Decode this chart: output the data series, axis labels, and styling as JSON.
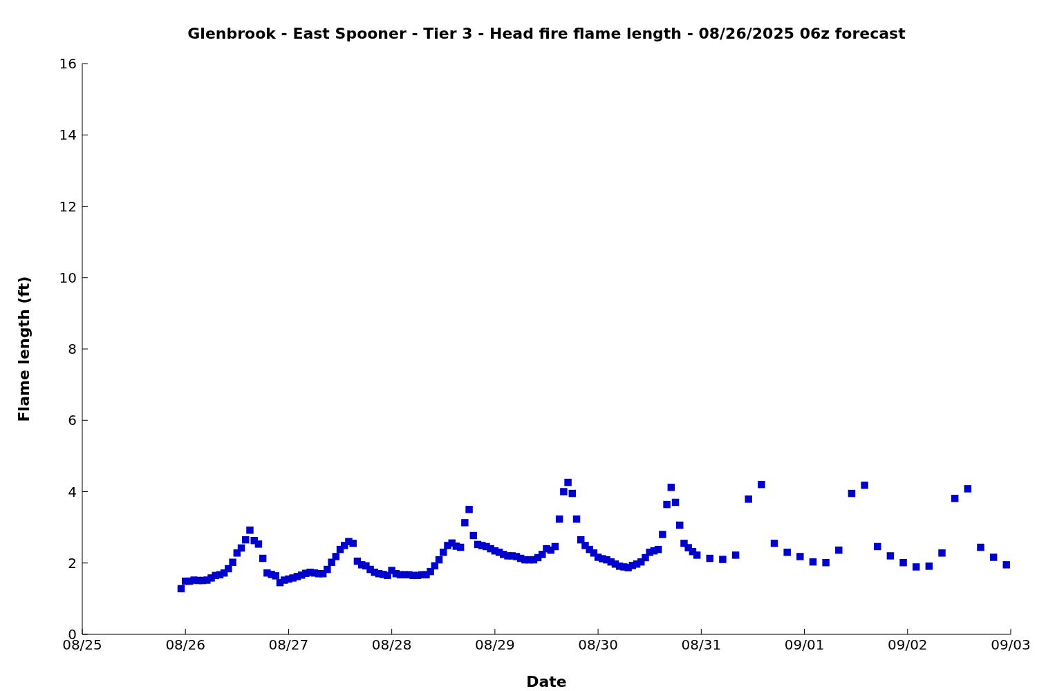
{
  "chart_data": {
    "type": "scatter",
    "title": "Glenbrook - East Spooner - Tier 3 - Head fire flame length - 08/26/2025 06z forecast",
    "xlabel": "Date",
    "ylabel": "Flame length (ft)",
    "marker": "square",
    "grid": false,
    "xlim": [
      "2025-08-25",
      "2025-09-03"
    ],
    "xticks": [
      {
        "value": "2025-08-25",
        "label": "08/25"
      },
      {
        "value": "2025-08-26",
        "label": "08/26"
      },
      {
        "value": "2025-08-27",
        "label": "08/27"
      },
      {
        "value": "2025-08-28",
        "label": "08/28"
      },
      {
        "value": "2025-08-29",
        "label": "08/29"
      },
      {
        "value": "2025-08-30",
        "label": "08/30"
      },
      {
        "value": "2025-08-31",
        "label": "08/31"
      },
      {
        "value": "2025-09-01",
        "label": "09/01"
      },
      {
        "value": "2025-09-02",
        "label": "09/02"
      },
      {
        "value": "2025-09-03",
        "label": "09/03"
      }
    ],
    "ylim": [
      0,
      16
    ],
    "yticks": [
      0,
      2,
      4,
      6,
      8,
      10,
      12,
      14,
      16
    ],
    "series": [
      {
        "color": "#0000cc",
        "x": [
          "2025-08-25T23:00",
          "2025-08-26T00:00",
          "2025-08-26T01:00",
          "2025-08-26T02:00",
          "2025-08-26T03:00",
          "2025-08-26T04:00",
          "2025-08-26T05:00",
          "2025-08-26T06:00",
          "2025-08-26T07:00",
          "2025-08-26T08:00",
          "2025-08-26T09:00",
          "2025-08-26T10:00",
          "2025-08-26T11:00",
          "2025-08-26T12:00",
          "2025-08-26T13:00",
          "2025-08-26T14:00",
          "2025-08-26T15:00",
          "2025-08-26T16:00",
          "2025-08-26T17:00",
          "2025-08-26T18:00",
          "2025-08-26T19:00",
          "2025-08-26T20:00",
          "2025-08-26T21:00",
          "2025-08-26T22:00",
          "2025-08-26T23:00",
          "2025-08-27T00:00",
          "2025-08-27T01:00",
          "2025-08-27T02:00",
          "2025-08-27T03:00",
          "2025-08-27T04:00",
          "2025-08-27T05:00",
          "2025-08-27T06:00",
          "2025-08-27T07:00",
          "2025-08-27T08:00",
          "2025-08-27T09:00",
          "2025-08-27T10:00",
          "2025-08-27T11:00",
          "2025-08-27T12:00",
          "2025-08-27T13:00",
          "2025-08-27T14:00",
          "2025-08-27T15:00",
          "2025-08-27T16:00",
          "2025-08-27T17:00",
          "2025-08-27T18:00",
          "2025-08-27T19:00",
          "2025-08-27T20:00",
          "2025-08-27T21:00",
          "2025-08-27T22:00",
          "2025-08-27T23:00",
          "2025-08-28T00:00",
          "2025-08-28T01:00",
          "2025-08-28T02:00",
          "2025-08-28T03:00",
          "2025-08-28T04:00",
          "2025-08-28T05:00",
          "2025-08-28T06:00",
          "2025-08-28T07:00",
          "2025-08-28T08:00",
          "2025-08-28T09:00",
          "2025-08-28T10:00",
          "2025-08-28T11:00",
          "2025-08-28T12:00",
          "2025-08-28T13:00",
          "2025-08-28T14:00",
          "2025-08-28T15:00",
          "2025-08-28T16:00",
          "2025-08-28T17:00",
          "2025-08-28T18:00",
          "2025-08-28T19:00",
          "2025-08-28T20:00",
          "2025-08-28T21:00",
          "2025-08-28T22:00",
          "2025-08-28T23:00",
          "2025-08-29T00:00",
          "2025-08-29T01:00",
          "2025-08-29T02:00",
          "2025-08-29T03:00",
          "2025-08-29T04:00",
          "2025-08-29T05:00",
          "2025-08-29T06:00",
          "2025-08-29T07:00",
          "2025-08-29T08:00",
          "2025-08-29T09:00",
          "2025-08-29T10:00",
          "2025-08-29T11:00",
          "2025-08-29T12:00",
          "2025-08-29T13:00",
          "2025-08-29T14:00",
          "2025-08-29T15:00",
          "2025-08-29T16:00",
          "2025-08-29T17:00",
          "2025-08-29T18:00",
          "2025-08-29T19:00",
          "2025-08-29T20:00",
          "2025-08-29T21:00",
          "2025-08-29T22:00",
          "2025-08-29T23:00",
          "2025-08-30T00:00",
          "2025-08-30T01:00",
          "2025-08-30T02:00",
          "2025-08-30T03:00",
          "2025-08-30T04:00",
          "2025-08-30T05:00",
          "2025-08-30T06:00",
          "2025-08-30T07:00",
          "2025-08-30T08:00",
          "2025-08-30T09:00",
          "2025-08-30T10:00",
          "2025-08-30T11:00",
          "2025-08-30T12:00",
          "2025-08-30T13:00",
          "2025-08-30T14:00",
          "2025-08-30T15:00",
          "2025-08-30T16:00",
          "2025-08-30T17:00",
          "2025-08-30T18:00",
          "2025-08-30T19:00",
          "2025-08-30T20:00",
          "2025-08-30T21:00",
          "2025-08-30T22:00",
          "2025-08-30T23:00",
          "2025-08-31T02:00",
          "2025-08-31T05:00",
          "2025-08-31T08:00",
          "2025-08-31T11:00",
          "2025-08-31T14:00",
          "2025-08-31T17:00",
          "2025-08-31T20:00",
          "2025-08-31T23:00",
          "2025-09-01T02:00",
          "2025-09-01T05:00",
          "2025-09-01T08:00",
          "2025-09-01T11:00",
          "2025-09-01T14:00",
          "2025-09-01T17:00",
          "2025-09-01T20:00",
          "2025-09-01T23:00",
          "2025-09-02T02:00",
          "2025-09-02T05:00",
          "2025-09-02T08:00",
          "2025-09-02T11:00",
          "2025-09-02T14:00",
          "2025-09-02T17:00",
          "2025-09-02T20:00",
          "2025-09-02T23:00"
        ],
        "values": [
          1.28,
          1.49,
          1.49,
          1.52,
          1.51,
          1.51,
          1.52,
          1.58,
          1.65,
          1.67,
          1.72,
          1.84,
          2.02,
          2.28,
          2.42,
          2.65,
          2.92,
          2.63,
          2.53,
          2.13,
          1.72,
          1.68,
          1.64,
          1.45,
          1.52,
          1.55,
          1.58,
          1.62,
          1.66,
          1.71,
          1.74,
          1.72,
          1.7,
          1.7,
          1.82,
          2.02,
          2.18,
          2.38,
          2.49,
          2.6,
          2.55,
          2.05,
          1.95,
          1.92,
          1.82,
          1.74,
          1.7,
          1.68,
          1.65,
          1.79,
          1.7,
          1.67,
          1.67,
          1.67,
          1.65,
          1.65,
          1.67,
          1.67,
          1.76,
          1.92,
          2.09,
          2.3,
          2.49,
          2.56,
          2.47,
          2.44,
          3.13,
          3.5,
          2.77,
          2.52,
          2.49,
          2.46,
          2.4,
          2.34,
          2.3,
          2.24,
          2.2,
          2.2,
          2.18,
          2.13,
          2.09,
          2.09,
          2.09,
          2.15,
          2.24,
          2.4,
          2.36,
          2.46,
          3.23,
          4.0,
          4.26,
          3.95,
          3.23,
          2.65,
          2.49,
          2.38,
          2.28,
          2.16,
          2.12,
          2.09,
          2.03,
          1.97,
          1.91,
          1.89,
          1.87,
          1.93,
          1.97,
          2.03,
          2.15,
          2.3,
          2.34,
          2.38,
          2.8,
          3.64,
          4.12,
          3.7,
          3.06,
          2.55,
          2.43,
          2.32,
          2.22,
          2.13,
          2.1,
          2.22,
          3.79,
          4.2,
          2.55,
          2.3,
          2.18,
          2.03,
          2.01,
          2.36,
          3.95,
          4.18,
          2.46,
          2.2,
          2.01,
          1.89,
          1.91,
          2.28,
          3.81,
          4.08,
          2.44,
          2.16,
          1.95
        ]
      }
    ]
  }
}
